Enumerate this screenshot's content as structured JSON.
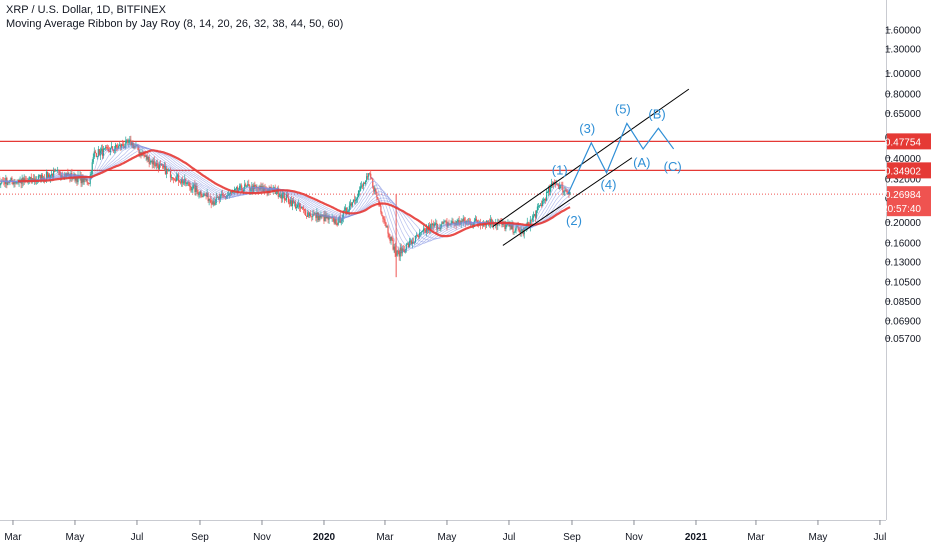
{
  "header": {
    "title": "XRP / U.S. Dollar, 1D, BITFINEX",
    "subtitle": "Moving Average Ribbon by Jay Roy (8, 14, 20, 26, 32, 38, 44, 50, 60)"
  },
  "price_axis": {
    "scale": "log",
    "ticks": [
      "1.60000",
      "1.30000",
      "1.00000",
      "0.80000",
      "0.65000",
      "0.50000",
      "0.40000",
      "0.32000",
      "0.26000",
      "0.20000",
      "0.16000",
      "0.13000",
      "0.10500",
      "0.08500",
      "0.06900",
      "0.05700"
    ],
    "tick_values": [
      1.6,
      1.3,
      1.0,
      0.8,
      0.65,
      0.5,
      0.4,
      0.32,
      0.26,
      0.2,
      0.16,
      0.13,
      0.105,
      0.085,
      0.069,
      0.057
    ]
  },
  "time_axis": {
    "labels": [
      "Mar",
      "May",
      "Jul",
      "Sep",
      "Nov",
      "2020",
      "Mar",
      "May",
      "Jul",
      "Sep",
      "Nov",
      "2021",
      "Mar",
      "May",
      "Jul"
    ],
    "bold": [
      "2020",
      "2021"
    ]
  },
  "horizontal_levels": [
    {
      "value": 0.47754,
      "label": "0.47754",
      "color": "#e53935"
    },
    {
      "value": 0.34902,
      "label": "0.34902",
      "color": "#e53935"
    }
  ],
  "last_price": {
    "value": 0.26984,
    "label": "0.26984",
    "countdown": "20:57:40",
    "color": "#ef5350"
  },
  "elliott_labels": [
    "(1)",
    "(2)",
    "(3)",
    "(4)",
    "(5)",
    "(A)",
    "(B)",
    "(C)"
  ],
  "colors": {
    "up": "#26a69a",
    "down": "#ef5350",
    "level_line": "#e53935",
    "wave": "#2f8fd6",
    "channel": "#000000",
    "ribbon_up": "#4caf50",
    "ribbon_down": "#e53935",
    "ribbon_mid": "#7b8de0"
  },
  "chart_data": {
    "type": "line",
    "title": "XRP / U.S. Dollar, 1D, BITFINEX",
    "xlabel": "",
    "ylabel": "",
    "yscale": "log",
    "ylim": [
      0.054,
      1.7
    ],
    "legend": "none",
    "grid": false,
    "x": [
      "2019-02",
      "2019-03",
      "2019-04",
      "2019-05",
      "2019-05-20",
      "2019-06-01",
      "2019-06-25",
      "2019-07-10",
      "2019-08",
      "2019-09",
      "2019-10",
      "2019-11",
      "2019-12",
      "2020-01",
      "2020-02",
      "2020-03-12",
      "2020-04",
      "2020-05",
      "2020-06",
      "2020-07",
      "2020-07-25",
      "2020-08",
      "2020-08-25"
    ],
    "series": [
      {
        "values": [
          0.31,
          0.31,
          0.34,
          0.31,
          0.42,
          0.43,
          0.47,
          0.4,
          0.31,
          0.25,
          0.29,
          0.28,
          0.22,
          0.2,
          0.33,
          0.14,
          0.19,
          0.2,
          0.2,
          0.18,
          0.21,
          0.31,
          0.28
        ]
      }
    ],
    "ribbon": {
      "periods": [
        8,
        14,
        20,
        26,
        32,
        38,
        44,
        50,
        60
      ]
    },
    "horizontal_levels": [
      0.47754,
      0.34902
    ],
    "last_price": 0.26984,
    "projection": {
      "labels": [
        "(1)",
        "(2)",
        "(3)",
        "(4)",
        "(5)",
        "(A)",
        "(B)",
        "(C)"
      ],
      "x": [
        "2020-08-20",
        "2020-09-03",
        "2020-09-20",
        "2020-10-05",
        "2020-10-25",
        "2020-11-10",
        "2020-11-25",
        "2020-12-10"
      ],
      "values": [
        0.3,
        0.235,
        0.47,
        0.34,
        0.58,
        0.44,
        0.55,
        0.44
      ]
    }
  }
}
